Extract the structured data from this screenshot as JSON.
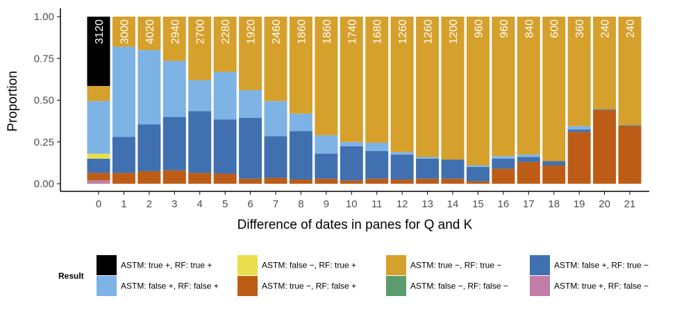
{
  "chart_data": {
    "type": "bar",
    "stacked": true,
    "normalized": true,
    "ylabel": "Proportion",
    "xlabel": "Difference of dates in panes for Q and K",
    "ylim": [
      0,
      1
    ],
    "y_ticks": [
      "0.00",
      "0.25",
      "0.50",
      "0.75",
      "1.00"
    ],
    "grid": false,
    "categories": [
      "0",
      "1",
      "2",
      "3",
      "4",
      "5",
      "6",
      "7",
      "8",
      "9",
      "10",
      "11",
      "12",
      "13",
      "14",
      "15",
      "16",
      "17",
      "18",
      "19",
      "20",
      "21"
    ],
    "totals": [
      "3120",
      "3000",
      "4020",
      "2940",
      "2700",
      "2280",
      "1920",
      "2460",
      "1860",
      "1860",
      "1740",
      "1680",
      "1260",
      "1260",
      "1200",
      "960",
      "960",
      "840",
      "600",
      "360",
      "240",
      "240"
    ],
    "stack_order_bottom_to_top": [
      "tp_fn",
      "tn_fp",
      "fp_tn",
      "fn_tp",
      "fn_fn",
      "fp_fp",
      "tn_tn",
      "tp_tp"
    ],
    "series": [
      {
        "key": "tp_fn",
        "name": "ASTM: true +, RF: false −",
        "color": "#c17da5",
        "values": [
          0.02,
          0,
          0,
          0,
          0,
          0,
          0,
          0,
          0,
          0,
          0,
          0,
          0,
          0,
          0,
          0,
          0,
          0,
          0,
          0,
          0,
          0
        ]
      },
      {
        "key": "tn_fp",
        "name": "ASTM: true −, RF: false +",
        "color": "#bd5c16",
        "values": [
          0.045,
          0.065,
          0.075,
          0.08,
          0.065,
          0.06,
          0.03,
          0.035,
          0.025,
          0.03,
          0.02,
          0.03,
          0.025,
          0.03,
          0.03,
          0.015,
          0.09,
          0.13,
          0.11,
          0.31,
          0.44,
          0.345
        ]
      },
      {
        "key": "fp_tn",
        "name": "ASTM: false +, RF: true −",
        "color": "#4070b0",
        "values": [
          0.085,
          0.215,
          0.28,
          0.32,
          0.37,
          0.325,
          0.365,
          0.25,
          0.29,
          0.15,
          0.205,
          0.165,
          0.15,
          0.12,
          0.115,
          0.085,
          0.06,
          0.03,
          0.025,
          0.015,
          0.005,
          0.005
        ]
      },
      {
        "key": "fn_tp",
        "name": "ASTM: false −, RF: true +",
        "color": "#e9df4c",
        "values": [
          0.03,
          0,
          0,
          0,
          0,
          0,
          0,
          0,
          0,
          0,
          0,
          0,
          0,
          0,
          0,
          0,
          0,
          0,
          0,
          0,
          0,
          0
        ]
      },
      {
        "key": "fn_fn",
        "name": "ASTM: false −, RF: false −",
        "color": "#5a9c6e",
        "values": [
          0,
          0,
          0,
          0,
          0,
          0,
          0,
          0,
          0,
          0,
          0,
          0,
          0,
          0,
          0,
          0,
          0,
          0,
          0,
          0,
          0,
          0
        ]
      },
      {
        "key": "fp_fp",
        "name": "ASTM: false +, RF: false +",
        "color": "#7eb3e6",
        "values": [
          0.315,
          0.54,
          0.445,
          0.335,
          0.185,
          0.285,
          0.165,
          0.21,
          0.105,
          0.11,
          0.025,
          0.05,
          0.015,
          0.01,
          0,
          0.01,
          0.015,
          0.015,
          0,
          0.02,
          0,
          0
        ]
      },
      {
        "key": "tn_tn",
        "name": "ASTM: true −, RF: true −",
        "color": "#d6a02c",
        "values": [
          0.09,
          0.18,
          0.2,
          0.265,
          0.38,
          0.33,
          0.44,
          0.505,
          0.58,
          0.71,
          0.75,
          0.755,
          0.81,
          0.84,
          0.855,
          0.89,
          0.835,
          0.825,
          0.865,
          0.655,
          0.555,
          0.65
        ]
      },
      {
        "key": "tp_tp",
        "name": "ASTM: true +, RF: true +",
        "color": "#000000",
        "values": [
          0.415,
          0,
          0,
          0,
          0,
          0,
          0,
          0,
          0,
          0,
          0,
          0,
          0,
          0,
          0,
          0,
          0,
          0,
          0,
          0,
          0,
          0
        ]
      }
    ],
    "legend": {
      "title": "Result",
      "position": "bottom",
      "items": [
        {
          "key": "tp_tp",
          "label": "ASTM: true +, RF: true +",
          "color": "#000000"
        },
        {
          "key": "fp_fp",
          "label": "ASTM: false +, RF: false +",
          "color": "#7eb3e6"
        },
        {
          "key": "fn_tp",
          "label": "ASTM: false −, RF: true +",
          "color": "#e9df4c"
        },
        {
          "key": "tn_fp",
          "label": "ASTM: true −, RF: false +",
          "color": "#bd5c16"
        },
        {
          "key": "tn_tn",
          "label": "ASTM: true −, RF: true −",
          "color": "#d6a02c"
        },
        {
          "key": "fn_fn",
          "label": "ASTM: false −, RF: false −",
          "color": "#5a9c6e"
        },
        {
          "key": "fp_tn",
          "label": "ASTM: false +, RF: true −",
          "color": "#4070b0"
        },
        {
          "key": "tp_fn",
          "label": "ASTM: true +, RF: false −",
          "color": "#c17da5"
        }
      ]
    }
  }
}
